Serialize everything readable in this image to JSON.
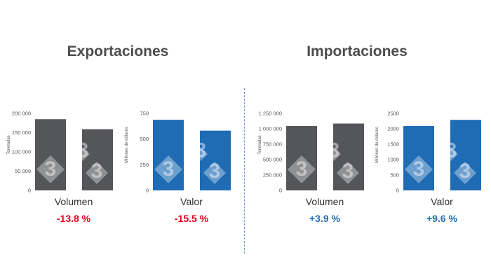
{
  "panels": {
    "left_title": "Exportaciones",
    "right_title": "Importaciones"
  },
  "watermark": {
    "glyph": "3",
    "name": "logo-3-watermark"
  },
  "chart_data": [
    {
      "id": "exp-vol",
      "type": "bar",
      "panel": "Exportaciones",
      "ylabel": "Toneladas",
      "ylim": [
        0,
        200000
      ],
      "yticks": [
        0,
        50000,
        100000,
        150000,
        200000
      ],
      "tick_labels": [
        "0",
        "50 000",
        "100 000",
        "150 000",
        "200 000"
      ],
      "values": [
        185000,
        159000
      ],
      "xlabel": "Volumen",
      "change": "-13.8 %",
      "color": "#55565a",
      "change_color": "#e3001b"
    },
    {
      "id": "exp-val",
      "type": "bar",
      "panel": "Exportaciones",
      "ylabel": "Millones de dólares",
      "ylim": [
        0,
        750
      ],
      "yticks": [
        0,
        250,
        500,
        750
      ],
      "tick_labels": [
        "0",
        "250",
        "500",
        "750"
      ],
      "values": [
        688,
        582
      ],
      "xlabel": "Valor",
      "change": "-15.5 %",
      "color": "#1f6cb5",
      "change_color": "#e3001b"
    },
    {
      "id": "imp-vol",
      "type": "bar",
      "panel": "Importaciones",
      "ylabel": "Toneladas",
      "ylim": [
        0,
        1250000
      ],
      "yticks": [
        0,
        250000,
        500000,
        750000,
        1000000,
        1250000
      ],
      "tick_labels": [
        "0",
        "250 000",
        "500 000",
        "750 000",
        "1 000 000",
        "1 250 000"
      ],
      "values": [
        1045000,
        1085000
      ],
      "xlabel": "Volumen",
      "change": "+3.9 %",
      "color": "#55565a",
      "change_color": "#1f6cb5"
    },
    {
      "id": "imp-val",
      "type": "bar",
      "panel": "Importaciones",
      "ylabel": "Millones de dólares",
      "ylim": [
        0,
        2500
      ],
      "yticks": [
        0,
        500,
        1000,
        1500,
        2000,
        2500
      ],
      "tick_labels": [
        "0",
        "500",
        "1000",
        "1500",
        "2000",
        "2500"
      ],
      "values": [
        2090,
        2290
      ],
      "xlabel": "Valor",
      "change": "+9.6 %",
      "color": "#1f6cb5",
      "change_color": "#1f6cb5"
    }
  ]
}
